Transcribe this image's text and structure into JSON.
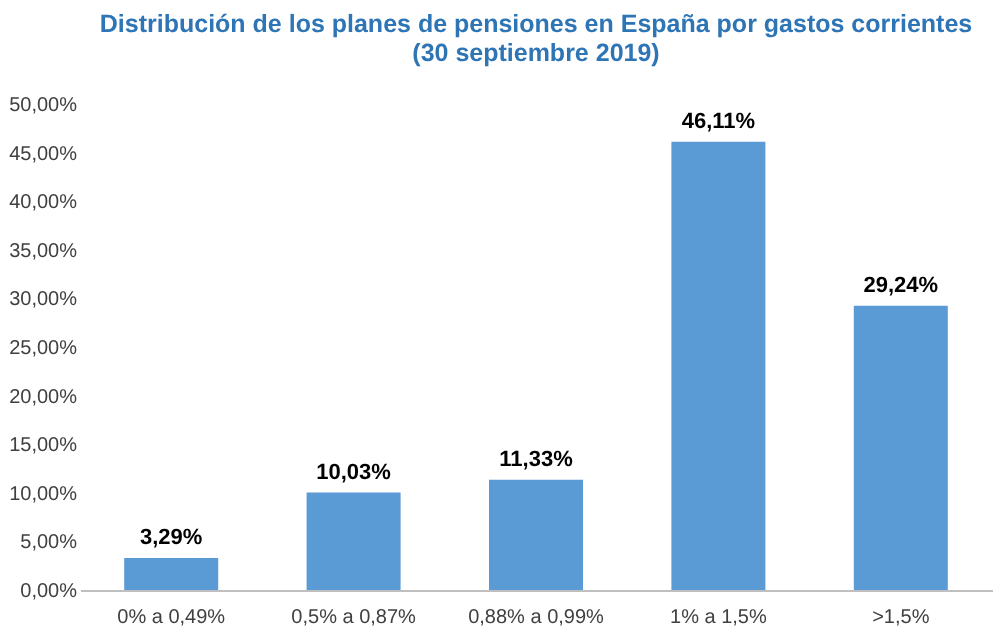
{
  "chart_data": {
    "type": "bar",
    "title": "Distribución de los planes de pensiones en España por gastos corrientes",
    "subtitle": "(30 septiembre 2019)",
    "categories": [
      "0% a 0,49%",
      "0,5% a 0,87%",
      "0,88% a 0,99%",
      "1% a 1,5%",
      ">1,5%"
    ],
    "values": [
      3.29,
      10.03,
      11.33,
      46.11,
      29.24
    ],
    "value_labels": [
      "3,29%",
      "10,03%",
      "11,33%",
      "46,11%",
      "29,24%"
    ],
    "color": "#5b9bd5",
    "ylim": [
      0,
      50
    ],
    "yticks": [
      {
        "value": 0,
        "label": "0,00%"
      },
      {
        "value": 5,
        "label": "5,00%"
      },
      {
        "value": 10,
        "label": "10,00%"
      },
      {
        "value": 15,
        "label": "15,00%"
      },
      {
        "value": 20,
        "label": "20,00%"
      },
      {
        "value": 25,
        "label": "25,00%"
      },
      {
        "value": 30,
        "label": "30,00%"
      },
      {
        "value": 35,
        "label": "35,00%"
      },
      {
        "value": 40,
        "label": "40,00%"
      },
      {
        "value": 45,
        "label": "45,00%"
      },
      {
        "value": 50,
        "label": "50,00%"
      }
    ],
    "grid": false
  }
}
